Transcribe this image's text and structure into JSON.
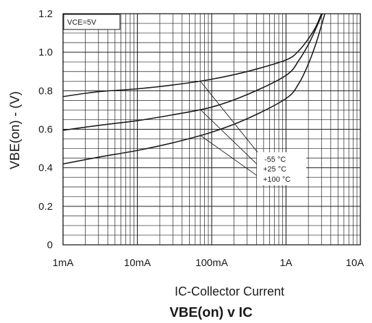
{
  "chart_data": {
    "type": "line",
    "title": "VBE(on) v IC",
    "xlabel": "IC-Collector Current",
    "ylabel": "VBE(on) - (V)",
    "condition": "VCE=5V",
    "x_scale": "log",
    "xlim": [
      "1mA",
      "10A"
    ],
    "ylim": [
      0,
      1.2
    ],
    "grid": true,
    "x_tick_labels": [
      "1mA",
      "10mA",
      "100mA",
      "1A",
      "10A"
    ],
    "y_tick_labels": [
      "0",
      "0.2",
      "0.4",
      "0.6",
      "0.8",
      "1.0",
      "1.2"
    ],
    "series": [
      {
        "name": "-55 °C",
        "x": [
          "1mA",
          "3mA",
          "10mA",
          "30mA",
          "100mA",
          "300mA",
          "1A",
          "1.5A",
          "2A",
          "2.5A",
          "3A",
          "3.3A"
        ],
        "y": [
          0.77,
          0.795,
          0.81,
          0.83,
          0.86,
          0.9,
          0.96,
          1.01,
          1.07,
          1.13,
          1.2,
          1.23
        ]
      },
      {
        "name": "+25 °C",
        "x": [
          "1mA",
          "3mA",
          "10mA",
          "30mA",
          "100mA",
          "300mA",
          "1A",
          "1.5A",
          "2A",
          "2.5A",
          "3A",
          "3.3A"
        ],
        "y": [
          0.595,
          0.62,
          0.645,
          0.675,
          0.715,
          0.78,
          0.88,
          0.96,
          1.04,
          1.12,
          1.19,
          1.23
        ]
      },
      {
        "name": "+100 °C",
        "x": [
          "1mA",
          "3mA",
          "10mA",
          "30mA",
          "100mA",
          "300mA",
          "1A",
          "1.5A",
          "2A",
          "2.5A",
          "3A",
          "3.5A"
        ],
        "y": [
          0.42,
          0.455,
          0.49,
          0.53,
          0.585,
          0.655,
          0.76,
          0.84,
          0.94,
          1.04,
          1.14,
          1.23
        ]
      }
    ],
    "annotations": [
      "-55 °C",
      "+25 °C",
      "+100 °C"
    ]
  }
}
